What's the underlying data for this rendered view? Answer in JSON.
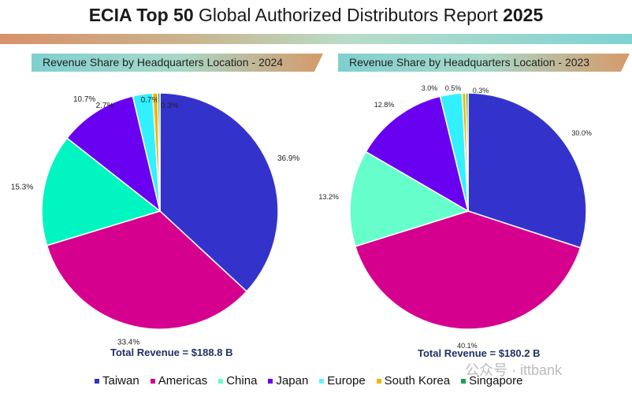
{
  "title": {
    "bold1": "ECIA Top 50",
    "normal": " Global Authorized Distributors Report ",
    "bold2": "2025"
  },
  "watermark": "公众号 · ittbank",
  "chart_data": [
    {
      "type": "pie",
      "title": "Revenue Share by Headquarters Location - 2024",
      "categories": [
        "Taiwan",
        "Americas",
        "China",
        "Japan",
        "Europe",
        "South Korea",
        "Singapore"
      ],
      "values": [
        36.9,
        33.4,
        15.3,
        10.7,
        2.7,
        0.7,
        0.3
      ],
      "labels": [
        "36.9%",
        "33.4%",
        "15.3%",
        "10.7%",
        "2.7%",
        "0.7%",
        "0.3%"
      ],
      "colors": [
        "#3333cc",
        "#d6008f",
        "#00f5c0",
        "#6a00f0",
        "#33f0ff",
        "#f0b400",
        "#1aa050"
      ],
      "total": "Total Revenue = $188.8 B"
    },
    {
      "type": "pie",
      "title": "Revenue Share by Headquarters Location - 2023",
      "categories": [
        "Taiwan",
        "Americas",
        "China",
        "Japan",
        "Europe",
        "South Korea",
        "Singapore"
      ],
      "values": [
        30.0,
        40.1,
        13.2,
        12.8,
        3.0,
        0.5,
        0.3
      ],
      "labels": [
        "30.0%",
        "40.1%",
        "13.2%",
        "12.8%",
        "3.0%",
        "0.5%",
        "0.3%"
      ],
      "colors": [
        "#3333cc",
        "#d6008f",
        "#66ffcc",
        "#6a00f0",
        "#33f0ff",
        "#f0b400",
        "#1aa050"
      ],
      "total": "Total Revenue = $180.2 B"
    }
  ],
  "legend": [
    {
      "label": "Taiwan",
      "color": "#3333cc"
    },
    {
      "label": "Americas",
      "color": "#d6008f"
    },
    {
      "label": "China",
      "color": "#66ffcc"
    },
    {
      "label": "Japan",
      "color": "#6a00f0"
    },
    {
      "label": "Europe",
      "color": "#66f0ff"
    },
    {
      "label": "South Korea",
      "color": "#f0b400"
    },
    {
      "label": "Singapore",
      "color": "#1aa050"
    }
  ]
}
